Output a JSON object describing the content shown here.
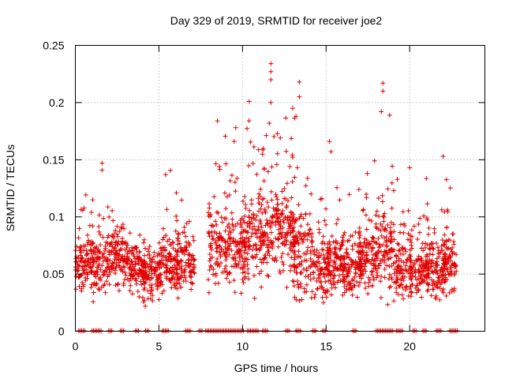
{
  "chart_data": {
    "type": "scatter",
    "title": "Day 329 of 2019, SRMTID for receiver joe2",
    "xlabel": "GPS time / hours",
    "ylabel": "SRMTID / TECUs",
    "xlim": [
      0,
      24.5
    ],
    "ylim": [
      0,
      0.25
    ],
    "xticks": [
      0,
      5,
      10,
      15,
      20
    ],
    "xtick_labels": [
      "0",
      "5",
      "10",
      "15",
      "20"
    ],
    "yticks": [
      0,
      0.05,
      0.1,
      0.15,
      0.2,
      0.25
    ],
    "ytick_labels": [
      "0",
      "0.05",
      "0.1",
      "0.15",
      "0.2",
      "0.25"
    ],
    "grid": true,
    "marker": "+",
    "series_color": "#e00000",
    "series": [
      {
        "name": "SRMTID",
        "x_range": [
          0.0,
          22.8
        ],
        "cluster_centers": [
          {
            "x": 0.5,
            "y": 0.06,
            "spread": 0.025
          },
          {
            "x": 1.5,
            "y": 0.06,
            "spread": 0.03
          },
          {
            "x": 2.6,
            "y": 0.065,
            "spread": 0.025
          },
          {
            "x": 3.6,
            "y": 0.055,
            "spread": 0.025
          },
          {
            "x": 4.6,
            "y": 0.05,
            "spread": 0.022
          },
          {
            "x": 5.6,
            "y": 0.06,
            "spread": 0.028
          },
          {
            "x": 6.6,
            "y": 0.06,
            "spread": 0.025
          },
          {
            "x": 8.5,
            "y": 0.075,
            "spread": 0.035
          },
          {
            "x": 9.6,
            "y": 0.075,
            "spread": 0.035
          },
          {
            "x": 10.6,
            "y": 0.085,
            "spread": 0.04
          },
          {
            "x": 11.6,
            "y": 0.09,
            "spread": 0.045
          },
          {
            "x": 12.6,
            "y": 0.085,
            "spread": 0.04
          },
          {
            "x": 13.5,
            "y": 0.07,
            "spread": 0.045
          },
          {
            "x": 14.6,
            "y": 0.055,
            "spread": 0.03
          },
          {
            "x": 15.6,
            "y": 0.06,
            "spread": 0.03
          },
          {
            "x": 16.6,
            "y": 0.055,
            "spread": 0.025
          },
          {
            "x": 17.5,
            "y": 0.065,
            "spread": 0.03
          },
          {
            "x": 18.5,
            "y": 0.075,
            "spread": 0.04
          },
          {
            "x": 19.6,
            "y": 0.055,
            "spread": 0.03
          },
          {
            "x": 20.6,
            "y": 0.055,
            "spread": 0.025
          },
          {
            "x": 21.6,
            "y": 0.055,
            "spread": 0.025
          },
          {
            "x": 22.5,
            "y": 0.06,
            "spread": 0.025
          }
        ],
        "peaks": [
          {
            "x": 11.7,
            "y": 0.234
          },
          {
            "x": 11.7,
            "y": 0.227
          },
          {
            "x": 11.7,
            "y": 0.22
          },
          {
            "x": 13.4,
            "y": 0.218
          },
          {
            "x": 18.4,
            "y": 0.217
          },
          {
            "x": 18.4,
            "y": 0.21
          },
          {
            "x": 10.4,
            "y": 0.201
          },
          {
            "x": 11.7,
            "y": 0.2
          },
          {
            "x": 13.4,
            "y": 0.205
          },
          {
            "x": 13.0,
            "y": 0.195
          },
          {
            "x": 18.3,
            "y": 0.192
          },
          {
            "x": 18.8,
            "y": 0.189
          },
          {
            "x": 8.5,
            "y": 0.184
          },
          {
            "x": 9.6,
            "y": 0.178
          },
          {
            "x": 11.6,
            "y": 0.182
          },
          {
            "x": 13.2,
            "y": 0.188
          },
          {
            "x": 9.5,
            "y": 0.166
          },
          {
            "x": 1.6,
            "y": 0.147
          },
          {
            "x": 1.6,
            "y": 0.141
          },
          {
            "x": 22.0,
            "y": 0.153
          },
          {
            "x": 5.4,
            "y": 0.137
          },
          {
            "x": 15.2,
            "y": 0.166
          },
          {
            "x": 15.3,
            "y": 0.157
          },
          {
            "x": 17.9,
            "y": 0.149
          },
          {
            "x": 20.0,
            "y": 0.143
          }
        ],
        "baseline_y": 0.0,
        "baseline_segments": [
          [
            0.2,
            0.6
          ],
          [
            1.0,
            1.6
          ],
          [
            2.0,
            2.2
          ],
          [
            2.7,
            2.9
          ],
          [
            3.6,
            3.8
          ],
          [
            4.2,
            4.4
          ],
          [
            5.2,
            5.6
          ],
          [
            6.6,
            6.9
          ],
          [
            7.4,
            7.6
          ],
          [
            7.8,
            9.6
          ],
          [
            9.7,
            10.1
          ],
          [
            10.3,
            11.0
          ],
          [
            11.2,
            11.5
          ],
          [
            12.6,
            12.8
          ],
          [
            13.2,
            13.5
          ],
          [
            14.2,
            14.4
          ],
          [
            14.8,
            15.0
          ],
          [
            16.6,
            16.8
          ],
          [
            18.0,
            19.0
          ],
          [
            19.2,
            19.6
          ],
          [
            20.2,
            20.4
          ],
          [
            20.8,
            21.0
          ],
          [
            21.6,
            21.9
          ],
          [
            22.4,
            22.9
          ]
        ]
      }
    ]
  }
}
